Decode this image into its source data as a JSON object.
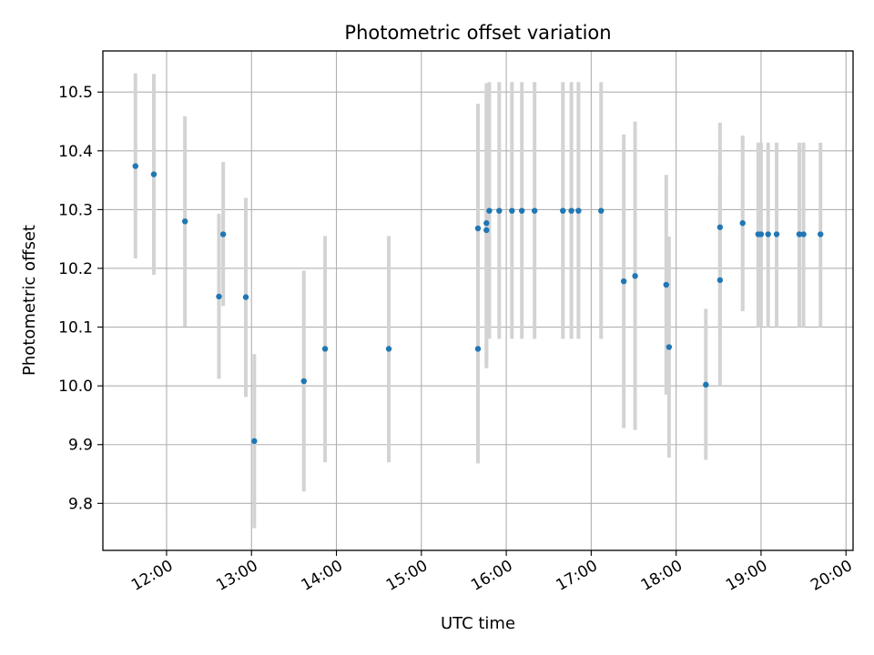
{
  "chart_data": {
    "type": "scatter",
    "title": "Photometric offset variation",
    "xlabel": "UTC time",
    "ylabel": "Photometric offset",
    "xlim": [
      "11:15",
      "20:05"
    ],
    "ylim": [
      9.72,
      10.57
    ],
    "grid": true,
    "x_ticks": [
      "12:00",
      "13:00",
      "14:00",
      "15:00",
      "16:00",
      "17:00",
      "18:00",
      "19:00",
      "20:00"
    ],
    "y_ticks": [
      "9.8",
      "9.9",
      "10.0",
      "10.1",
      "10.2",
      "10.3",
      "10.4",
      "10.5"
    ],
    "point_color": "#1f77b4",
    "errorbar_color": "#d3d3d3",
    "points": [
      {
        "x": "11:38",
        "y": 10.374,
        "lo": 10.217,
        "hi": 10.532
      },
      {
        "x": "11:51",
        "y": 10.36,
        "lo": 10.189,
        "hi": 10.531
      },
      {
        "x": "12:13",
        "y": 10.28,
        "lo": 10.101,
        "hi": 10.459
      },
      {
        "x": "12:37",
        "y": 10.152,
        "lo": 10.012,
        "hi": 10.293
      },
      {
        "x": "12:40",
        "y": 10.258,
        "lo": 10.136,
        "hi": 10.381
      },
      {
        "x": "12:56",
        "y": 10.151,
        "lo": 9.981,
        "hi": 10.32
      },
      {
        "x": "13:02",
        "y": 9.906,
        "lo": 9.758,
        "hi": 10.054
      },
      {
        "x": "13:37",
        "y": 10.008,
        "lo": 9.82,
        "hi": 10.196
      },
      {
        "x": "13:52",
        "y": 10.063,
        "lo": 9.87,
        "hi": 10.255
      },
      {
        "x": "14:37",
        "y": 10.063,
        "lo": 9.87,
        "hi": 10.255
      },
      {
        "x": "15:40",
        "y": 10.268,
        "lo": 10.055,
        "hi": 10.48
      },
      {
        "x": "15:40",
        "y": 10.063,
        "lo": 9.868,
        "hi": 10.256
      },
      {
        "x": "15:46",
        "y": 10.265,
        "lo": 10.03,
        "hi": 10.5
      },
      {
        "x": "15:46",
        "y": 10.277,
        "lo": 10.038,
        "hi": 10.515
      },
      {
        "x": "15:48",
        "y": 10.298,
        "lo": 10.08,
        "hi": 10.517
      },
      {
        "x": "15:55",
        "y": 10.298,
        "lo": 10.08,
        "hi": 10.517
      },
      {
        "x": "16:04",
        "y": 10.298,
        "lo": 10.08,
        "hi": 10.517
      },
      {
        "x": "16:11",
        "y": 10.298,
        "lo": 10.08,
        "hi": 10.517
      },
      {
        "x": "16:20",
        "y": 10.298,
        "lo": 10.08,
        "hi": 10.517
      },
      {
        "x": "16:40",
        "y": 10.298,
        "lo": 10.08,
        "hi": 10.517
      },
      {
        "x": "16:46",
        "y": 10.298,
        "lo": 10.08,
        "hi": 10.517
      },
      {
        "x": "16:51",
        "y": 10.298,
        "lo": 10.08,
        "hi": 10.517
      },
      {
        "x": "17:07",
        "y": 10.298,
        "lo": 10.08,
        "hi": 10.517
      },
      {
        "x": "17:23",
        "y": 10.178,
        "lo": 9.928,
        "hi": 10.428
      },
      {
        "x": "17:31",
        "y": 10.187,
        "lo": 9.925,
        "hi": 10.45
      },
      {
        "x": "17:53",
        "y": 10.172,
        "lo": 9.985,
        "hi": 10.359
      },
      {
        "x": "17:55",
        "y": 10.066,
        "lo": 9.878,
        "hi": 10.254
      },
      {
        "x": "18:21",
        "y": 10.002,
        "lo": 9.874,
        "hi": 10.131
      },
      {
        "x": "18:31",
        "y": 10.27,
        "lo": 10.092,
        "hi": 10.448
      },
      {
        "x": "18:31",
        "y": 10.18,
        "lo": 10.0,
        "hi": 10.36
      },
      {
        "x": "18:47",
        "y": 10.277,
        "lo": 10.127,
        "hi": 10.426
      },
      {
        "x": "18:58",
        "y": 10.258,
        "lo": 10.1,
        "hi": 10.414
      },
      {
        "x": "19:00",
        "y": 10.258,
        "lo": 10.1,
        "hi": 10.414
      },
      {
        "x": "19:05",
        "y": 10.258,
        "lo": 10.1,
        "hi": 10.414
      },
      {
        "x": "19:11",
        "y": 10.258,
        "lo": 10.1,
        "hi": 10.414
      },
      {
        "x": "19:27",
        "y": 10.258,
        "lo": 10.1,
        "hi": 10.414
      },
      {
        "x": "19:30",
        "y": 10.258,
        "lo": 10.1,
        "hi": 10.414
      },
      {
        "x": "19:42",
        "y": 10.258,
        "lo": 10.1,
        "hi": 10.414
      }
    ]
  }
}
